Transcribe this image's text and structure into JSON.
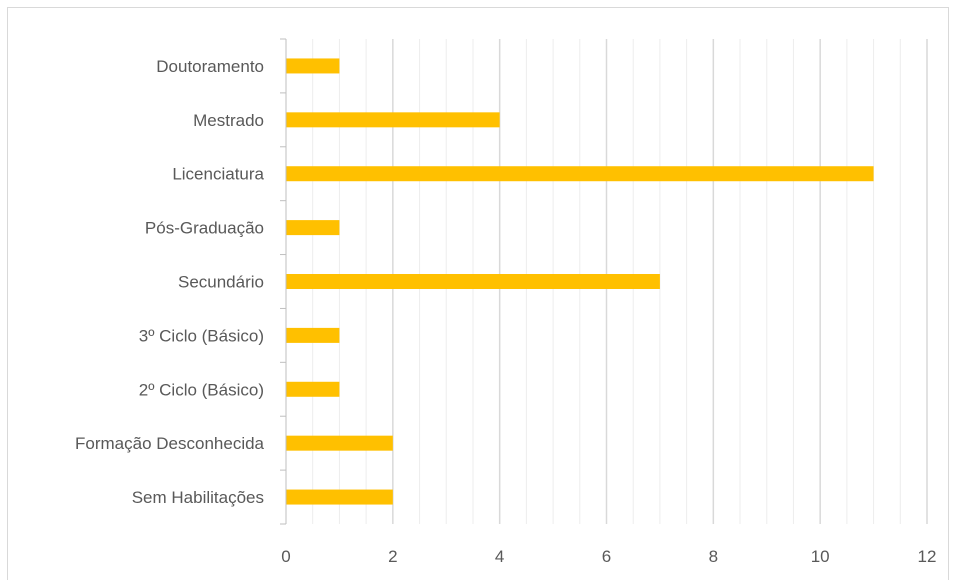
{
  "chart_data": {
    "type": "bar",
    "orientation": "horizontal",
    "title": "",
    "xlabel": "",
    "ylabel": "",
    "categories": [
      "Doutoramento",
      "Mestrado",
      "Licenciatura",
      "Pós-Graduação",
      "Secundário",
      "3º Ciclo (Básico)",
      "2º Ciclo (Básico)",
      "Formação Desconhecida",
      "Sem Habilitações"
    ],
    "values": [
      1,
      4,
      11,
      1,
      7,
      1,
      1,
      2,
      2
    ],
    "xlim": [
      0,
      12
    ],
    "xticks": [
      "0",
      "2",
      "4",
      "6",
      "8",
      "10",
      "12"
    ],
    "grid": "vertical major and minor",
    "legend": "none",
    "colors": {
      "bar": "#FFC000",
      "major_grid": "#D9D9D9",
      "minor_grid": "#EDEDED",
      "axis": "#BFBFBF",
      "text": "#595959"
    }
  }
}
